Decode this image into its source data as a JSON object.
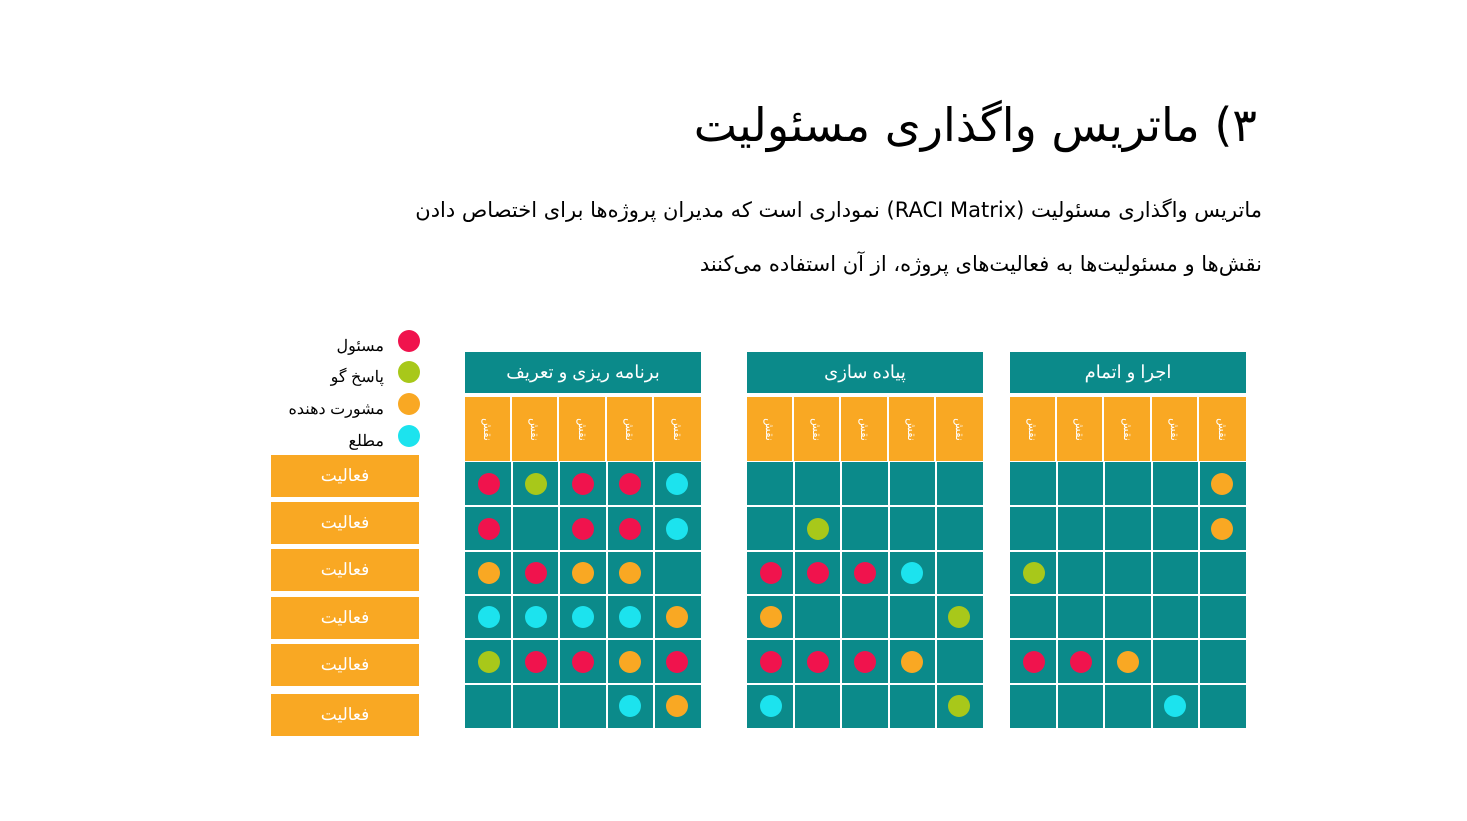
{
  "title": "۳) ماتریس واگذاری مسئولیت",
  "description": {
    "line1": "ماتریس واگذاری مسئولیت (RACI Matrix) نموداری است که مدیران پروژه‌ها برای اختصاص دادن",
    "line2": "نقش‌ها و مسئولیت‌ها به فعالیت‌های پروژه، از آن استفاده می‌کنند"
  },
  "colors": {
    "R": "#F0134D",
    "A": "#A8C81A",
    "C": "#F9A823",
    "I": "#1CE3EE",
    "teal": "#0B8A8A",
    "orange": "#F9A823"
  },
  "legend": [
    {
      "code": "R",
      "label": "مسئول"
    },
    {
      "code": "A",
      "label": "پاسخ گو"
    },
    {
      "code": "C",
      "label": "مشورت دهنده"
    },
    {
      "code": "I",
      "label": "مطلع"
    }
  ],
  "activities": [
    "فعالیت",
    "فعالیت",
    "فعالیت",
    "فعالیت",
    "فعالیت",
    "فعالیت"
  ],
  "role_label": "نقش",
  "phases": [
    {
      "name": "برنامه ریزی و تعریف",
      "cells": [
        [
          "R",
          "A",
          "R",
          "R",
          "I"
        ],
        [
          "R",
          "",
          "R",
          "R",
          "I"
        ],
        [
          "C",
          "R",
          "C",
          "C",
          ""
        ],
        [
          "I",
          "I",
          "I",
          "I",
          "C"
        ],
        [
          "A",
          "R",
          "R",
          "C",
          "R"
        ],
        [
          "",
          "",
          "",
          "I",
          "C"
        ]
      ]
    },
    {
      "name": "پیاده سازی",
      "cells": [
        [
          "",
          "",
          "",
          "",
          ""
        ],
        [
          "",
          "A",
          "",
          "",
          ""
        ],
        [
          "R",
          "R",
          "R",
          "I",
          ""
        ],
        [
          "C",
          "",
          "",
          "",
          "A"
        ],
        [
          "R",
          "R",
          "R",
          "C",
          ""
        ],
        [
          "I",
          "",
          "",
          "",
          "A"
        ]
      ]
    },
    {
      "name": "اجرا و اتمام",
      "cells": [
        [
          "",
          "",
          "",
          "",
          "C"
        ],
        [
          "",
          "",
          "",
          "",
          "C"
        ],
        [
          "A",
          "",
          "",
          "",
          ""
        ],
        [
          "",
          "",
          "",
          "",
          ""
        ],
        [
          "R",
          "R",
          "C",
          "",
          ""
        ],
        [
          "",
          "",
          "",
          "I",
          ""
        ]
      ]
    }
  ]
}
